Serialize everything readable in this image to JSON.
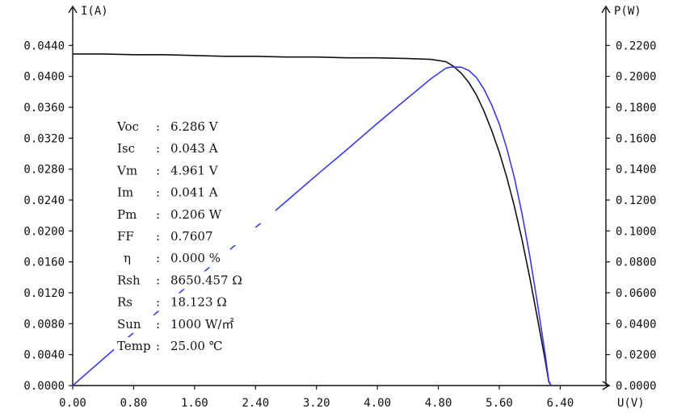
{
  "chart_data": {
    "type": "line",
    "left_axis_label": "I(A)",
    "right_axis_label": "P(W)",
    "x_axis_label": "U(V)",
    "xlim": [
      0,
      7.0
    ],
    "ylim_left": [
      0,
      0.048
    ],
    "ylim_right": [
      0,
      0.24
    ],
    "x_ticks": [
      "0.00",
      "0.80",
      "1.60",
      "2.40",
      "3.20",
      "4.00",
      "4.80",
      "5.60",
      "6.40"
    ],
    "left_ticks": [
      "0.0000",
      "0.0040",
      "0.0080",
      "0.0120",
      "0.0160",
      "0.0200",
      "0.0240",
      "0.0280",
      "0.0320",
      "0.0360",
      "0.0400",
      "0.0440"
    ],
    "right_ticks": [
      "0.0000",
      "0.0200",
      "0.0400",
      "0.0600",
      "0.0800",
      "0.1000",
      "0.1200",
      "0.1400",
      "0.1600",
      "0.1800",
      "0.2000",
      "0.2200"
    ],
    "series": [
      {
        "axis": "left",
        "color": "#111111",
        "points": [
          [
            0.0,
            0.0429
          ],
          [
            0.4,
            0.0429
          ],
          [
            0.8,
            0.0428
          ],
          [
            1.2,
            0.0428
          ],
          [
            1.6,
            0.0427
          ],
          [
            2.0,
            0.0426
          ],
          [
            2.4,
            0.0426
          ],
          [
            2.8,
            0.0425
          ],
          [
            3.2,
            0.0425
          ],
          [
            3.6,
            0.0424
          ],
          [
            4.0,
            0.0424
          ],
          [
            4.4,
            0.0423
          ],
          [
            4.7,
            0.0422
          ],
          [
            4.9,
            0.0419
          ],
          [
            5.0,
            0.0413
          ],
          [
            5.1,
            0.0404
          ],
          [
            5.2,
            0.0392
          ],
          [
            5.3,
            0.0376
          ],
          [
            5.4,
            0.0355
          ],
          [
            5.5,
            0.033
          ],
          [
            5.6,
            0.0302
          ],
          [
            5.7,
            0.0269
          ],
          [
            5.8,
            0.0231
          ],
          [
            5.9,
            0.0188
          ],
          [
            6.0,
            0.014
          ],
          [
            6.1,
            0.0088
          ],
          [
            6.2,
            0.0034
          ],
          [
            6.25,
            0.0005
          ],
          [
            6.28,
            0.0
          ]
        ]
      },
      {
        "axis": "right",
        "color": "#3a3ae8",
        "points": [
          [
            0.0,
            0.0
          ],
          [
            0.4,
            0.0172
          ],
          [
            0.8,
            0.0342
          ],
          [
            1.2,
            0.0514
          ],
          [
            1.6,
            0.0683
          ],
          [
            2.0,
            0.0852
          ],
          [
            2.4,
            0.1022
          ],
          [
            2.8,
            0.119
          ],
          [
            3.2,
            0.136
          ],
          [
            3.6,
            0.1526
          ],
          [
            4.0,
            0.1696
          ],
          [
            4.4,
            0.1861
          ],
          [
            4.7,
            0.1983
          ],
          [
            4.9,
            0.2053
          ],
          [
            4.96,
            0.206
          ],
          [
            5.1,
            0.206
          ],
          [
            5.2,
            0.2038
          ],
          [
            5.3,
            0.1993
          ],
          [
            5.4,
            0.1917
          ],
          [
            5.5,
            0.1815
          ],
          [
            5.6,
            0.1691
          ],
          [
            5.7,
            0.1533
          ],
          [
            5.8,
            0.134
          ],
          [
            5.9,
            0.1109
          ],
          [
            6.0,
            0.084
          ],
          [
            6.1,
            0.0537
          ],
          [
            6.2,
            0.0211
          ],
          [
            6.25,
            0.0031
          ],
          [
            6.28,
            0.0
          ]
        ]
      }
    ],
    "parameters": [
      {
        "name": "Voc",
        "value": "6.286",
        "unit": "V"
      },
      {
        "name": "Isc",
        "value": "0.043",
        "unit": "A"
      },
      {
        "name": "Vm",
        "value": "4.961",
        "unit": "V"
      },
      {
        "name": "Im",
        "value": "0.041",
        "unit": "A"
      },
      {
        "name": "Pm",
        "value": "0.206",
        "unit": "W"
      },
      {
        "name": "FF",
        "value": "0.7607",
        "unit": ""
      },
      {
        "name": "η",
        "value": "0.000",
        "unit": "%"
      },
      {
        "name": "Rsh",
        "value": "8650.457",
        "unit": "Ω"
      },
      {
        "name": "Rs",
        "value": "18.123",
        "unit": "Ω"
      },
      {
        "name": "Sun",
        "value": "1000",
        "unit": "W/㎡"
      },
      {
        "name": "Temp",
        "value": "25.00",
        "unit": "℃"
      }
    ]
  }
}
